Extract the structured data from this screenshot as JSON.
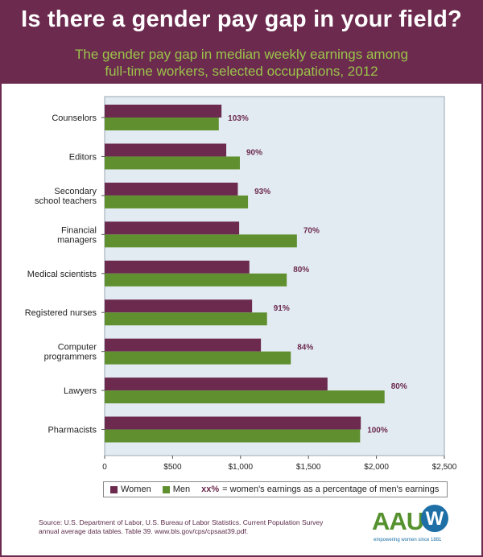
{
  "header": {
    "title": "Is there a gender pay gap in your field?",
    "subtitle_line1": "The gender pay gap in median weekly earnings among",
    "subtitle_line2": "full-time workers, selected occupations, 2012"
  },
  "colors": {
    "header_bg": "#6b2a4e",
    "subtitle": "#9cc34a",
    "women": "#6b2a4e",
    "men": "#5f8f2f",
    "plot_bg": "#e3ebf2"
  },
  "chart_data": {
    "type": "bar",
    "orientation": "horizontal",
    "categories": [
      [
        "Counselors"
      ],
      [
        "Editors"
      ],
      [
        "Secondary",
        "school teachers"
      ],
      [
        "Financial",
        "managers"
      ],
      [
        "Medical scientists"
      ],
      [
        "Registered nurses"
      ],
      [
        "Computer",
        "programmers"
      ],
      [
        "Lawyers"
      ],
      [
        "Pharmacists"
      ]
    ],
    "series": [
      {
        "name": "Women",
        "values": [
          860,
          895,
          980,
          990,
          1065,
          1085,
          1150,
          1640,
          1885
        ]
      },
      {
        "name": "Men",
        "values": [
          840,
          995,
          1055,
          1415,
          1340,
          1195,
          1370,
          2060,
          1880
        ]
      }
    ],
    "percent_labels": [
      "103%",
      "90%",
      "93%",
      "70%",
      "80%",
      "91%",
      "84%",
      "80%",
      "100%"
    ],
    "x_ticks": [
      "0",
      "$500",
      "$1,000",
      "$1,500",
      "$2,000",
      "$2,500"
    ],
    "xlim": [
      0,
      2500
    ],
    "grid": false,
    "legend_position": "bottom"
  },
  "legend": {
    "women": "Women",
    "men": "Men",
    "note_key": "xx%",
    "note_text": "= women's earnings as a percentage of men's earnings"
  },
  "source": {
    "line1": "Source: U.S. Department of Labor, U.S. Bureau of Labor Statistics. Current Population Survey",
    "line2": "annual average data tables. Table 39. www.bls.gov/cps/cpsaat39.pdf."
  },
  "logo": {
    "text": "AAU",
    "w": "W",
    "tagline": "empowering women since 1881"
  }
}
